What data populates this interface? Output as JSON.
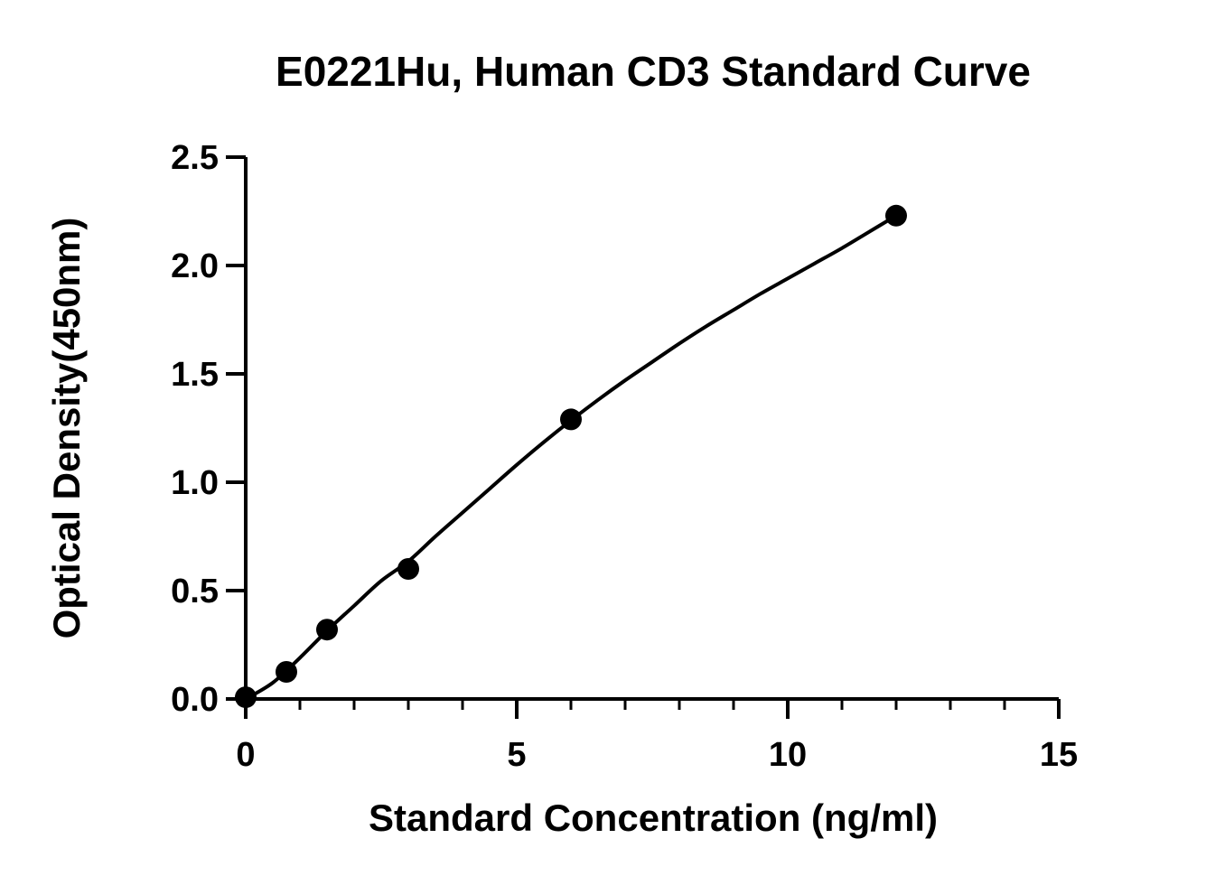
{
  "chart_data": {
    "type": "scatter",
    "title": "E0221Hu, Human CD3 Standard Curve",
    "xlabel": "Standard Concentration (ng/ml)",
    "ylabel": "Optical Density(450nm)",
    "xlim": [
      0,
      15
    ],
    "ylim": [
      0,
      2.5
    ],
    "x_ticks": [
      0,
      5,
      10,
      15
    ],
    "x_tick_labels": [
      "0",
      "5",
      "10",
      "15"
    ],
    "x_minor_step": 1,
    "y_ticks": [
      0,
      0.5,
      1.0,
      1.5,
      2.0,
      2.5
    ],
    "y_tick_labels": [
      "0.0",
      "0.5",
      "1.0",
      "1.5",
      "2.0",
      "2.5"
    ],
    "grid": false,
    "legend": "none",
    "series": [
      {
        "x": [
          0,
          0.75,
          1.5,
          3,
          6,
          12
        ],
        "y": [
          0.008,
          0.125,
          0.32,
          0.6,
          1.29,
          2.23
        ]
      }
    ],
    "fit_curve": {
      "x": [
        0,
        0.5,
        1,
        1.5,
        2,
        2.5,
        3,
        3.5,
        4,
        4.5,
        5,
        5.5,
        6,
        6.5,
        7,
        7.5,
        8,
        8.5,
        9,
        9.5,
        10,
        10.5,
        11,
        11.5,
        12
      ],
      "y": [
        0.0,
        0.075,
        0.19,
        0.315,
        0.43,
        0.545,
        0.635,
        0.75,
        0.86,
        0.97,
        1.08,
        1.185,
        1.285,
        1.38,
        1.47,
        1.555,
        1.64,
        1.72,
        1.795,
        1.87,
        1.94,
        2.01,
        2.08,
        2.155,
        2.23
      ]
    },
    "colors": {
      "marker": "#000000",
      "line": "#000000",
      "axis": "#000000"
    }
  }
}
